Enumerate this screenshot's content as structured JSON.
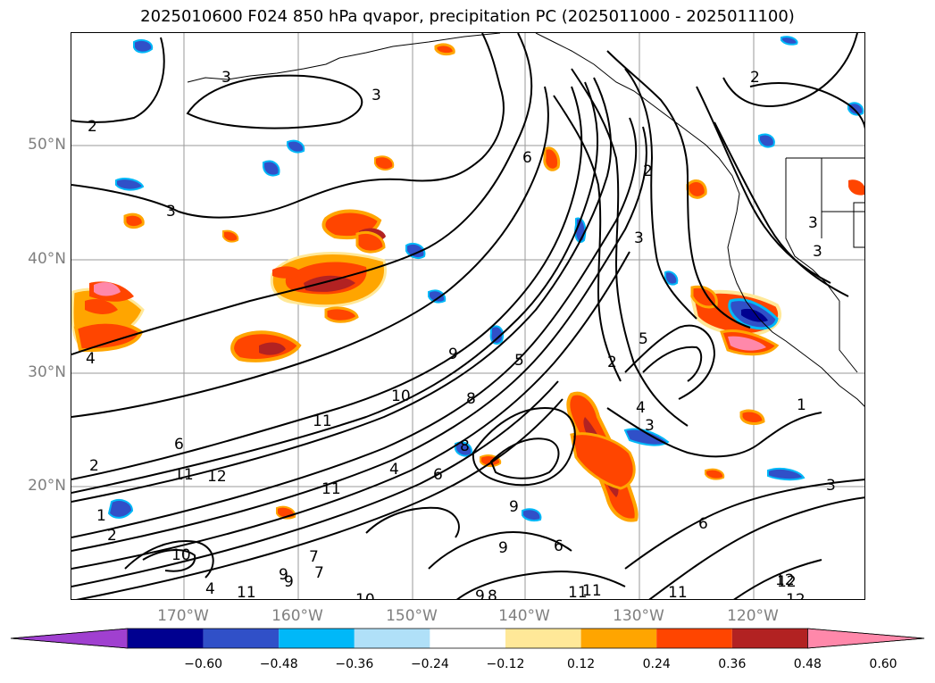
{
  "title": "2025010600 F024 850 hPa qvapor, precipitation PC (2025011000 - 2025011100)",
  "map": {
    "lat_labels": [
      "50°N",
      "40°N",
      "30°N",
      "20°N"
    ],
    "lon_labels": [
      "170°W",
      "160°W",
      "150°W",
      "140°W",
      "130°W",
      "120°W"
    ],
    "contour_labels": [
      "3",
      "3",
      "2",
      "3",
      "4",
      "6",
      "3",
      "2",
      "3",
      "5",
      "2",
      "4",
      "3",
      "11",
      "10",
      "9",
      "8",
      "6",
      "9",
      "9",
      "6",
      "12",
      "11",
      "10",
      "9",
      "8",
      "11",
      "11",
      "12",
      "12",
      "3",
      "1",
      "2",
      "3",
      "5",
      "4",
      "2",
      "6",
      "8",
      "11",
      "7",
      "9",
      "11",
      "4",
      "1",
      "2",
      "12",
      "10",
      "11",
      "9",
      "6",
      "7"
    ]
  },
  "colorbar": {
    "colors": [
      "#a040d0",
      "#000090",
      "#3050c8",
      "#00b8f8",
      "#b0e0f8",
      "#ffffff",
      "#ffe898",
      "#ffa500",
      "#ff4500",
      "#b22222",
      "#ff88aa"
    ],
    "ticks": [
      "−0.60",
      "−0.48",
      "−0.36",
      "−0.24",
      "−0.12",
      "0.12",
      "0.24",
      "0.36",
      "0.48",
      "0.60"
    ]
  }
}
